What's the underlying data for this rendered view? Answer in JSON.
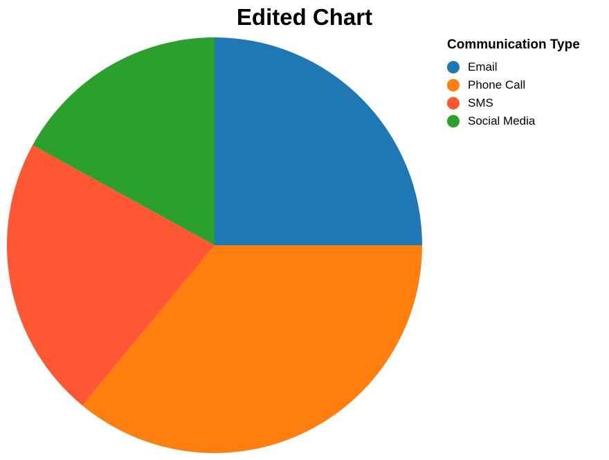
{
  "chart_data": {
    "type": "pie",
    "title": "Edited Chart",
    "legend_title": "Communication Type",
    "legend_position": "top-right",
    "slices": [
      {
        "label": "Email",
        "value": 25,
        "color": "#1f77b4"
      },
      {
        "label": "Phone Call",
        "value": 36,
        "color": "#ff7f0e"
      },
      {
        "label": "SMS",
        "value": 22,
        "color": "#ff5733"
      },
      {
        "label": "Social Media",
        "value": 17,
        "color": "#2ca02c"
      }
    ]
  }
}
